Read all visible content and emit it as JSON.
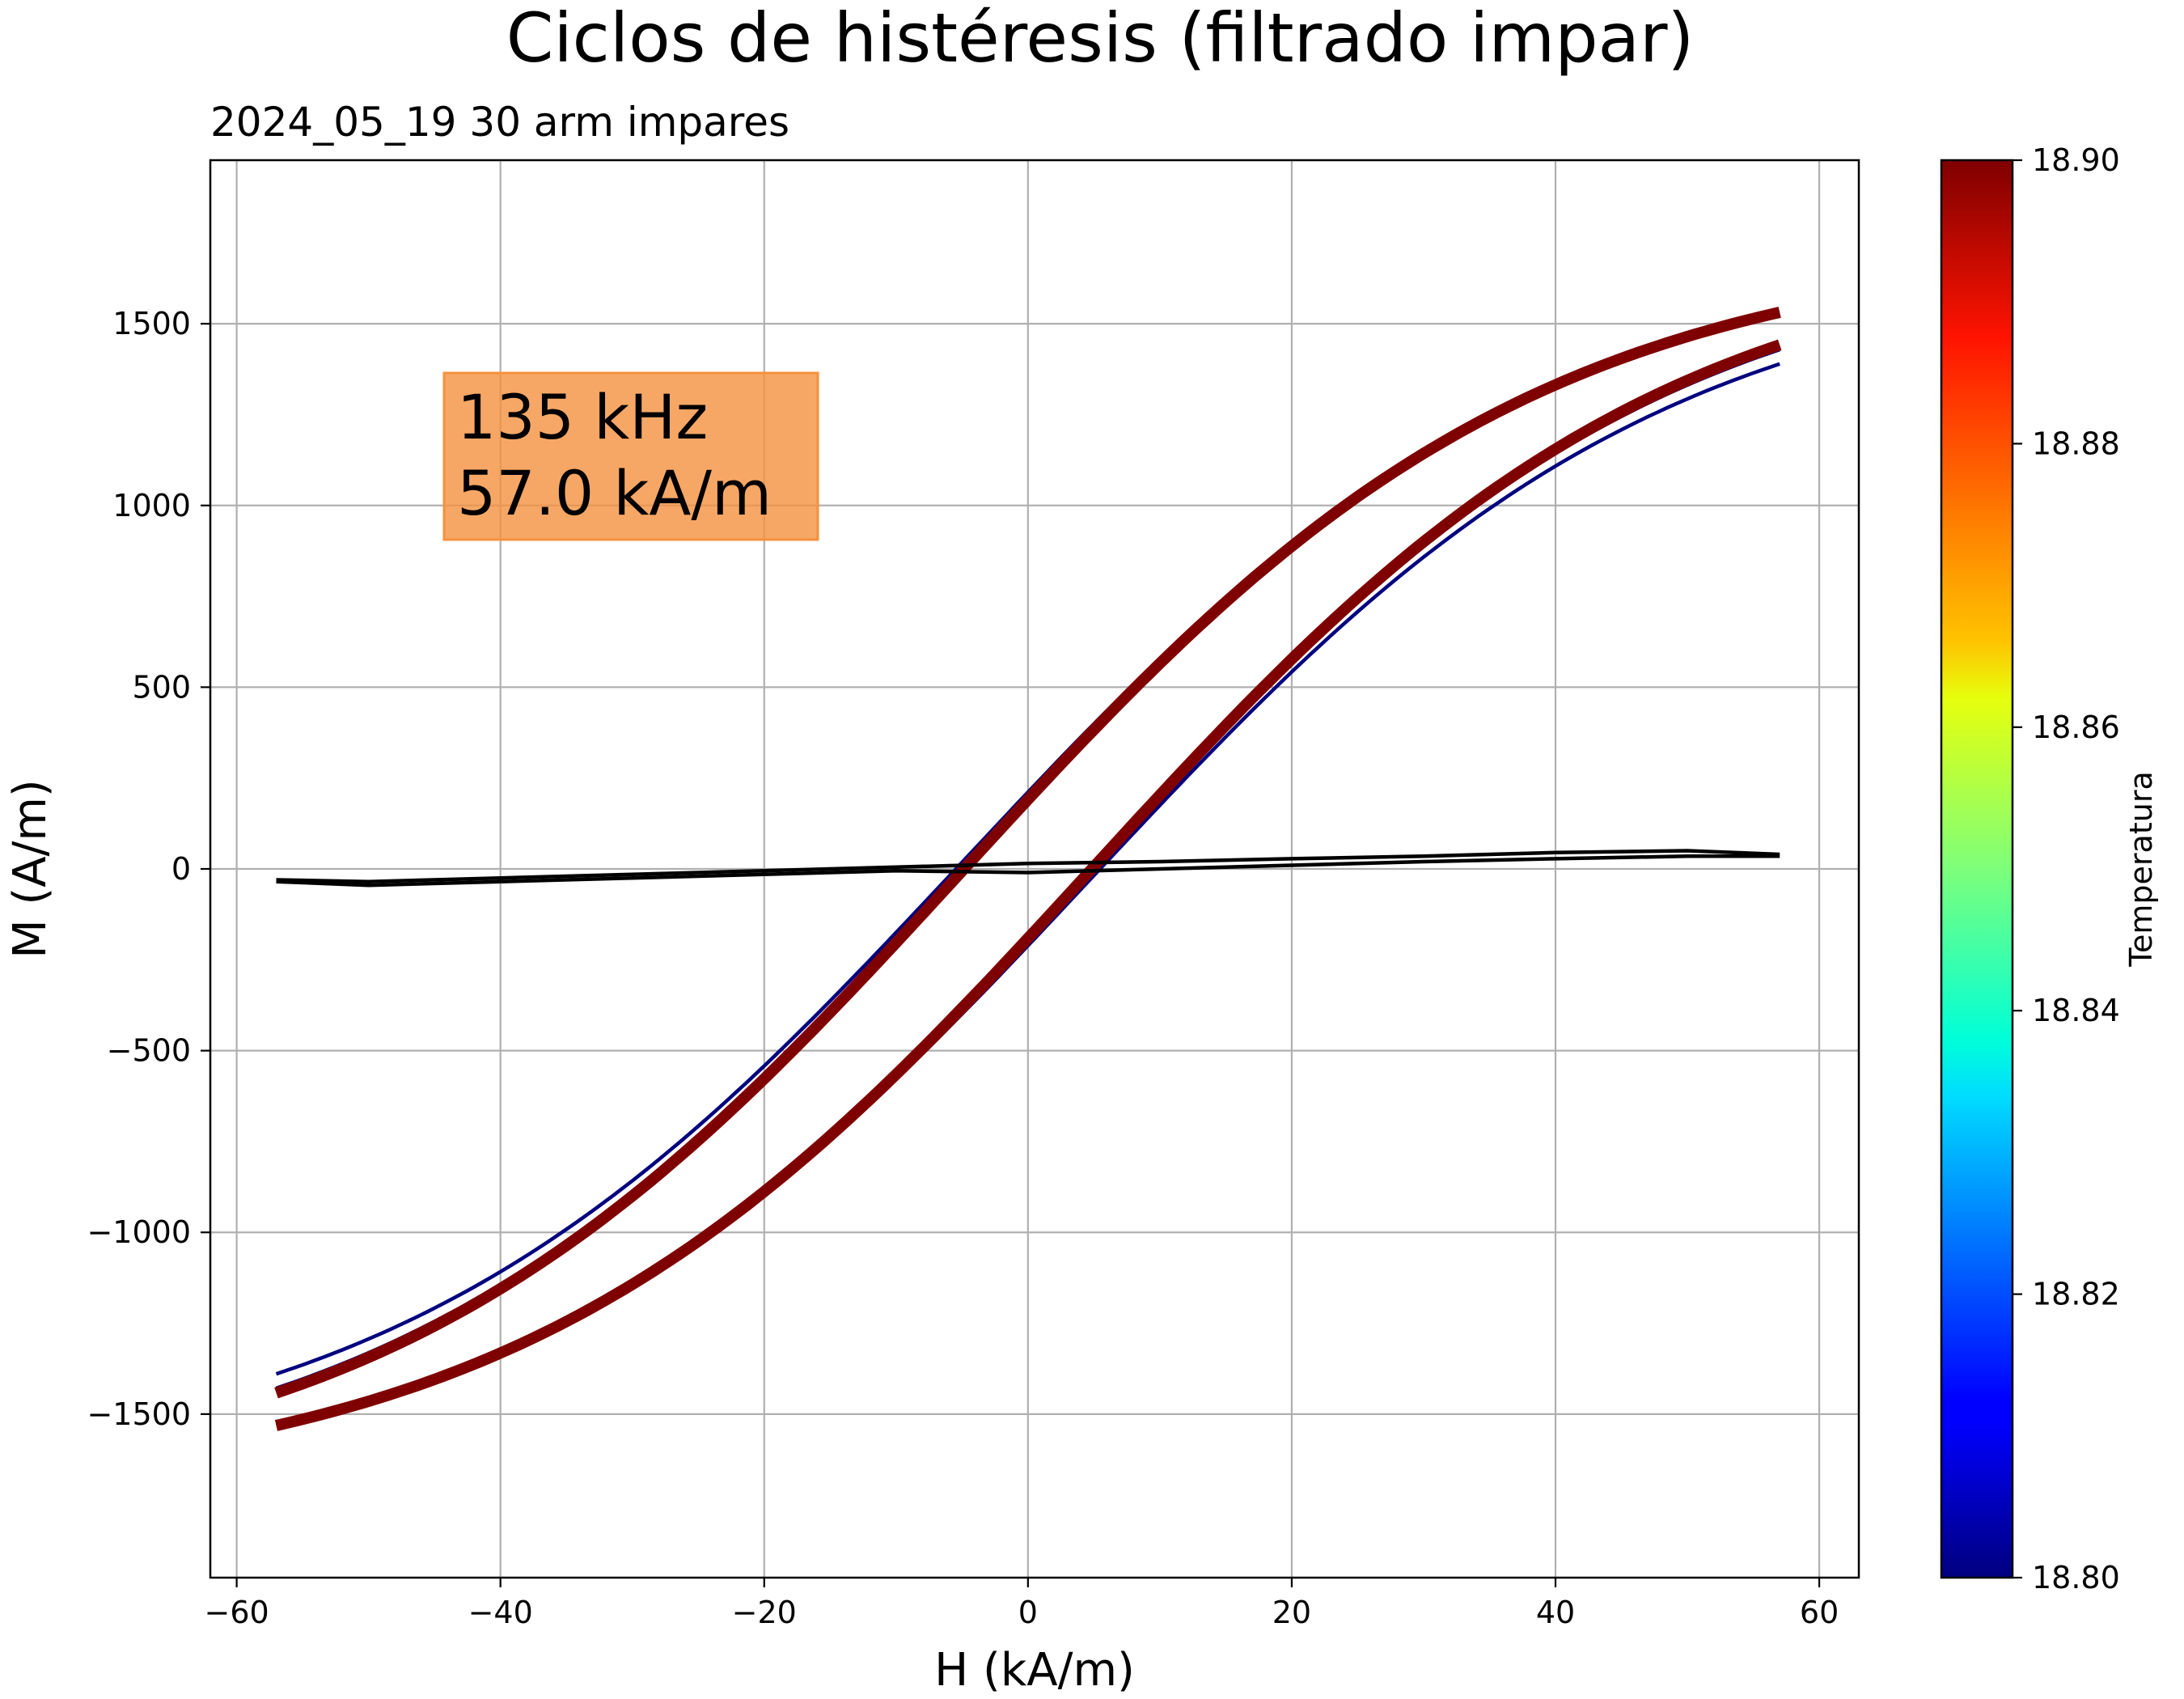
{
  "chart_data": {
    "type": "line",
    "title": "Ciclos de histéresis (filtrado impar)",
    "subtitle": "2024_05_19   30 arm impares",
    "xlabel": "H (kA/m)",
    "ylabel": "M (A/m)",
    "xlim": [
      -62,
      63
    ],
    "ylim": [
      -1950,
      1950
    ],
    "xticks": [
      -60,
      -40,
      -20,
      0,
      20,
      40,
      60
    ],
    "xtick_labels": [
      "−60",
      "−40",
      "−20",
      "0",
      "20",
      "40",
      "60"
    ],
    "yticks": [
      -1500,
      -1000,
      -500,
      0,
      500,
      1000,
      1500
    ],
    "ytick_labels": [
      "−1500",
      "−1000",
      "−500",
      "0",
      "500",
      "1000",
      "1500"
    ],
    "grid": true,
    "annotation": {
      "lines": [
        "135 kHz",
        "57.0 kA/m"
      ],
      "background": "#f5913e"
    },
    "colorbar": {
      "label": "Temperatura",
      "colormap": "jet",
      "min": 18.8,
      "max": 18.9,
      "ticks": [
        18.8,
        18.82,
        18.84,
        18.86,
        18.88,
        18.9
      ],
      "tick_labels": [
        "18.80",
        "18.82",
        "18.84",
        "18.86",
        "18.88",
        "18.90"
      ]
    },
    "loop_model": {
      "H_max": 57,
      "M_max": 1720,
      "coercive_field": 5,
      "remanence": 200
    },
    "series": [
      {
        "color": "#00007f",
        "temperature": 18.8,
        "upper_branch": {
          "H": [
            57,
            50,
            40,
            30,
            20,
            10,
            5,
            0,
            -5,
            -10,
            -20,
            -30,
            -40,
            -50,
            -57
          ],
          "M": [
            1720,
            1630,
            1480,
            1250,
            940,
            560,
            375,
            200,
            10,
            -200,
            -660,
            -1050,
            -1350,
            -1560,
            -1690
          ]
        },
        "lower_branch": {
          "H": [
            -57,
            -50,
            -40,
            -30,
            -20,
            -10,
            -5,
            0,
            5,
            10,
            20,
            30,
            40,
            50,
            57
          ],
          "M": [
            -1720,
            -1630,
            -1480,
            -1250,
            -940,
            -560,
            -375,
            -200,
            -10,
            200,
            660,
            1050,
            1350,
            1560,
            1690
          ]
        }
      },
      {
        "color": "#7f0000",
        "temperature": 18.9,
        "upper_branch": {
          "H": [
            57,
            50,
            40,
            30,
            20,
            10,
            5,
            0,
            -5,
            -10,
            -20,
            -30,
            -40,
            -50,
            -57
          ],
          "M": [
            1740,
            1660,
            1500,
            1260,
            950,
            570,
            385,
            200,
            10,
            -200,
            -680,
            -1070,
            -1380,
            -1600,
            -1730
          ]
        },
        "lower_branch": {
          "H": [
            -57,
            -50,
            -40,
            -30,
            -20,
            -10,
            -5,
            0,
            5,
            10,
            20,
            30,
            40,
            50,
            57
          ],
          "M": [
            -1740,
            -1660,
            -1500,
            -1260,
            -950,
            -570,
            -385,
            -200,
            -10,
            200,
            680,
            1070,
            1380,
            1600,
            1730
          ]
        }
      },
      {
        "color": "#000000",
        "upper_branch": {
          "H": [
            57,
            50,
            40,
            30,
            20,
            10,
            0,
            -10,
            -20,
            -30,
            -40,
            -50,
            -57
          ],
          "M": [
            40,
            50,
            45,
            35,
            28,
            20,
            15,
            5,
            -5,
            -15,
            -25,
            -35,
            -30
          ]
        },
        "lower_branch": {
          "H": [
            -57,
            -50,
            -40,
            -30,
            -20,
            -10,
            0,
            10,
            20,
            30,
            40,
            50,
            57
          ],
          "M": [
            -35,
            -45,
            -35,
            -25,
            -15,
            -5,
            -10,
            0,
            10,
            20,
            28,
            35,
            35
          ]
        }
      }
    ]
  }
}
